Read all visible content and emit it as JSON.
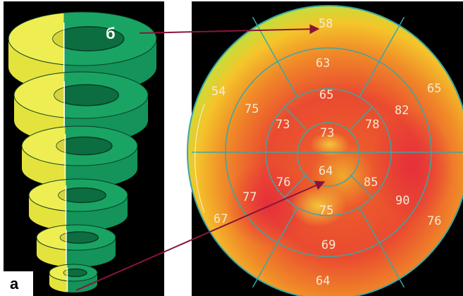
{
  "labels": {
    "a": "а",
    "b": "б"
  },
  "segments": [
    {
      "id": 1,
      "value": "58"
    },
    {
      "id": 2,
      "value": "65"
    },
    {
      "id": 3,
      "value": "76"
    },
    {
      "id": 4,
      "value": "64"
    },
    {
      "id": 5,
      "value": "67"
    },
    {
      "id": 6,
      "value": "54"
    },
    {
      "id": 7,
      "value": "63"
    },
    {
      "id": 8,
      "value": "82"
    },
    {
      "id": 9,
      "value": "90"
    },
    {
      "id": 10,
      "value": "69"
    },
    {
      "id": 11,
      "value": "77"
    },
    {
      "id": 12,
      "value": "75"
    },
    {
      "id": 13,
      "value": "65"
    },
    {
      "id": 14,
      "value": "78"
    },
    {
      "id": 15,
      "value": "85"
    },
    {
      "id": 16,
      "value": "75"
    },
    {
      "id": 17,
      "value": "76"
    },
    {
      "id": 18,
      "value": "73"
    },
    {
      "id": 19,
      "value": "73"
    },
    {
      "id": 20,
      "value": "64"
    }
  ],
  "colors": {
    "panel_bg": "#000000",
    "green": "#14935a",
    "yellow": "#e4e23c",
    "arrow": "#8a1538",
    "grid": "#3aa6a6",
    "numbers": "#f6ead4"
  }
}
